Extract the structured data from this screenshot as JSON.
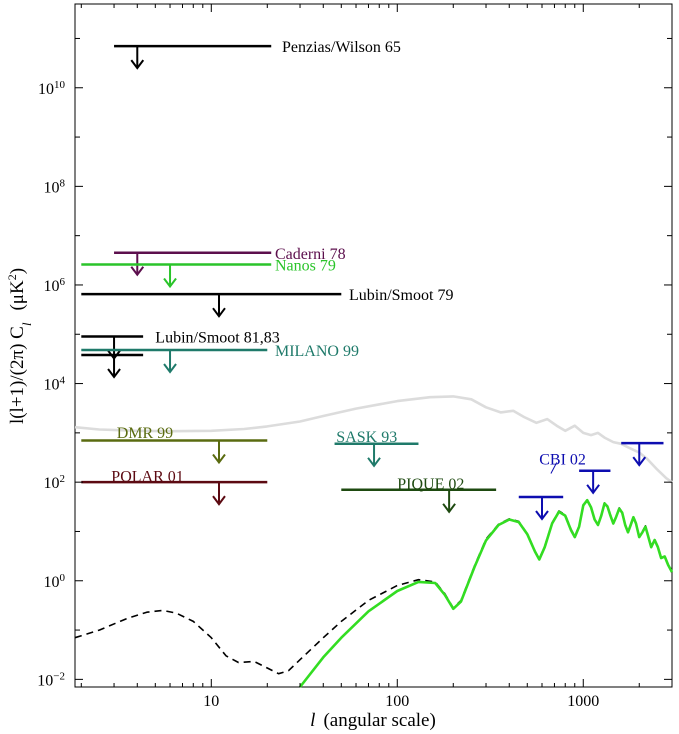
{
  "chart_data": {
    "type": "line",
    "title": "",
    "xlabel_italic": "l",
    "xlabel_rest": "(angular scale)",
    "ylabel": "l(l+1)/(2π) C",
    "ylabel_sub": "l",
    "ylabel_unit": "(μK",
    "ylabel_unit_sup": "2",
    "ylabel_unit_end": ")",
    "x_scale": "log",
    "y_scale": "log",
    "xlim": [
      1.85,
      3000
    ],
    "ylim": [
      0.007,
      500000000000
    ],
    "x_ticks": [
      {
        "value": 10,
        "label": "10"
      },
      {
        "value": 100,
        "label": "100"
      },
      {
        "value": 1000,
        "label": "1000"
      }
    ],
    "y_ticks": [
      {
        "value": 0.01,
        "base": "10",
        "exp": "−2"
      },
      {
        "value": 1,
        "base": "10",
        "exp": "0"
      },
      {
        "value": 100,
        "base": "10",
        "exp": "2"
      },
      {
        "value": 10000,
        "base": "10",
        "exp": "4"
      },
      {
        "value": 1000000,
        "base": "10",
        "exp": "6"
      },
      {
        "value": 100000000,
        "base": "10",
        "exp": "8"
      },
      {
        "value": 10000000000,
        "base": "10",
        "exp": "10"
      }
    ],
    "upper_limits": [
      {
        "name": "Penzias/Wilson 65",
        "color": "#000000",
        "x0": 3,
        "x1": 21,
        "y": 70000000000,
        "arrow_x": 4,
        "label_x": 24,
        "label_y": 70000000000
      },
      {
        "name": "Caderni 78",
        "color": "#5c0f4d",
        "x0": 3,
        "x1": 21,
        "y": 4500000,
        "arrow_x": 4,
        "label_x": 22,
        "label_y": 4500000
      },
      {
        "name": "Nanos 79",
        "color": "#2ac42a",
        "x0": 2,
        "x1": 21,
        "y": 2600000,
        "arrow_x": 6,
        "label_x": 22,
        "label_y": 2600000
      },
      {
        "name": "Lubin/Smoot 79",
        "color": "#000000",
        "x0": 2,
        "x1": 50,
        "y": 650000,
        "arrow_x": 11,
        "label_x": 55,
        "label_y": 650000
      },
      {
        "name": "Lubin/Smoot 81,83",
        "color": "#000000",
        "x0": 2,
        "x1": 4.3,
        "y": 90000,
        "arrow_x": 3,
        "label_x": 5,
        "label_y": 90000
      },
      {
        "name": "",
        "color": "#000000",
        "x0": 2,
        "x1": 4.3,
        "y": 38000,
        "arrow_x": 3
      },
      {
        "name": "MILANO 99",
        "color": "#1f7a6a",
        "x0": 2,
        "x1": 20,
        "y": 48000,
        "arrow_x": 6,
        "label_x": 22,
        "label_y": 48000
      },
      {
        "name": "DMR 99",
        "color": "#5a6b10",
        "x0": 2,
        "x1": 20,
        "y": 700,
        "arrow_x": 11,
        "label_x": 3.1,
        "label_y": 1050
      },
      {
        "name": "POLAR 01",
        "color": "#5c0a12",
        "x0": 2,
        "x1": 20,
        "y": 100,
        "arrow_x": 11,
        "label_x": 2.9,
        "label_y": 135
      },
      {
        "name": "SASK 93",
        "color": "#1f7a6a",
        "x0": 46,
        "x1": 130,
        "y": 600,
        "arrow_x": 75,
        "label_x": 47,
        "label_y": 860
      },
      {
        "name": "PIQUE 02",
        "color": "#1e4a10",
        "x0": 50,
        "x1": 340,
        "y": 70,
        "arrow_x": 190,
        "label_x": 100,
        "label_y": 96
      },
      {
        "name": "",
        "color": "#0d0db0",
        "x0": 450,
        "x1": 780,
        "y": 50,
        "arrow_x": 600
      },
      {
        "name": "",
        "color": "#0d0db0",
        "x0": 950,
        "x1": 1400,
        "y": 170,
        "arrow_x": 1130
      },
      {
        "name": "",
        "color": "#0d0db0",
        "x0": 1600,
        "x1": 2700,
        "y": 620,
        "arrow_x": 2000
      }
    ],
    "cbi_label": {
      "name": "CBI 02",
      "color": "#0d0db0",
      "label_x": 580,
      "label_y": 300,
      "leader_from_x": 720,
      "leader_from_y": 250,
      "leader_to_x": 670,
      "leader_to_y": 150
    },
    "series": [
      {
        "name": "gray_reference",
        "color": "#dcdcdc",
        "style": "solid",
        "points": [
          [
            1.85,
            1300
          ],
          [
            2.5,
            1170
          ],
          [
            4,
            1100
          ],
          [
            6,
            1080
          ],
          [
            10,
            1100
          ],
          [
            15,
            1200
          ],
          [
            20,
            1350
          ],
          [
            30,
            1700
          ],
          [
            40,
            2200
          ],
          [
            60,
            3100
          ],
          [
            100,
            4400
          ],
          [
            150,
            5300
          ],
          [
            200,
            5500
          ],
          [
            250,
            4800
          ],
          [
            300,
            3300
          ],
          [
            360,
            2600
          ],
          [
            420,
            2800
          ],
          [
            480,
            2100
          ],
          [
            560,
            1600
          ],
          [
            640,
            1900
          ],
          [
            720,
            1400
          ],
          [
            800,
            1100
          ],
          [
            900,
            1400
          ],
          [
            1000,
            1000
          ],
          [
            1100,
            900
          ],
          [
            1200,
            1000
          ],
          [
            1300,
            800
          ],
          [
            1450,
            650
          ],
          [
            1600,
            600
          ],
          [
            1800,
            480
          ],
          [
            2000,
            400
          ],
          [
            2200,
            300
          ],
          [
            2500,
            180
          ],
          [
            2800,
            120
          ],
          [
            3000,
            100
          ]
        ]
      },
      {
        "name": "model_dashed",
        "color": "#000000",
        "style": "dashed",
        "points": [
          [
            1.85,
            0.07
          ],
          [
            2.5,
            0.1
          ],
          [
            3.5,
            0.17
          ],
          [
            4.5,
            0.23
          ],
          [
            5.5,
            0.25
          ],
          [
            6.5,
            0.22
          ],
          [
            8,
            0.15
          ],
          [
            10,
            0.07
          ],
          [
            12,
            0.03
          ],
          [
            14,
            0.022
          ],
          [
            17,
            0.023
          ],
          [
            20,
            0.017
          ],
          [
            23,
            0.013
          ],
          [
            26,
            0.015
          ],
          [
            30,
            0.025
          ],
          [
            40,
            0.07
          ],
          [
            50,
            0.15
          ],
          [
            70,
            0.4
          ],
          [
            100,
            0.8
          ],
          [
            130,
            1.05
          ],
          [
            160,
            0.95
          ],
          [
            180,
            0.55
          ],
          [
            200,
            0.28
          ],
          [
            220,
            0.4
          ],
          [
            260,
            2
          ],
          [
            300,
            7
          ],
          [
            350,
            14
          ],
          [
            400,
            18
          ],
          [
            450,
            16
          ],
          [
            500,
            9
          ],
          [
            550,
            4
          ],
          [
            580,
            2.8
          ],
          [
            620,
            5
          ],
          [
            680,
            15
          ],
          [
            740,
            26
          ],
          [
            800,
            22
          ],
          [
            860,
            11
          ],
          [
            900,
            8
          ],
          [
            950,
            13
          ],
          [
            1000,
            35
          ],
          [
            1050,
            44
          ],
          [
            1100,
            32
          ],
          [
            1150,
            18
          ],
          [
            1200,
            14
          ],
          [
            1250,
            22
          ],
          [
            1300,
            38
          ],
          [
            1350,
            33
          ],
          [
            1400,
            22
          ],
          [
            1450,
            15
          ],
          [
            1500,
            20
          ],
          [
            1560,
            30
          ],
          [
            1620,
            25
          ],
          [
            1680,
            14
          ],
          [
            1740,
            10
          ],
          [
            1800,
            14
          ],
          [
            1860,
            20
          ],
          [
            1920,
            15
          ],
          [
            2000,
            8
          ],
          [
            2080,
            10
          ],
          [
            2160,
            13
          ],
          [
            2240,
            8
          ],
          [
            2320,
            5
          ],
          [
            2420,
            7
          ],
          [
            2520,
            5
          ],
          [
            2620,
            3
          ],
          [
            2740,
            3.2
          ],
          [
            2860,
            2.2
          ],
          [
            3000,
            1.6
          ]
        ]
      },
      {
        "name": "model_green",
        "color": "#33dd22",
        "style": "solid",
        "points": [
          [
            30,
            0.007
          ],
          [
            40,
            0.028
          ],
          [
            50,
            0.07
          ],
          [
            70,
            0.24
          ],
          [
            100,
            0.62
          ],
          [
            130,
            0.95
          ],
          [
            160,
            0.9
          ],
          [
            180,
            0.52
          ],
          [
            200,
            0.27
          ],
          [
            220,
            0.38
          ],
          [
            260,
            1.9
          ],
          [
            300,
            6.6
          ],
          [
            350,
            13.5
          ],
          [
            400,
            17.5
          ],
          [
            450,
            15.5
          ],
          [
            500,
            8.8
          ],
          [
            550,
            3.9
          ],
          [
            580,
            2.7
          ],
          [
            620,
            4.8
          ],
          [
            680,
            14.5
          ],
          [
            740,
            25
          ],
          [
            800,
            21
          ],
          [
            860,
            10.5
          ],
          [
            900,
            7.7
          ],
          [
            950,
            12.5
          ],
          [
            1000,
            34
          ],
          [
            1050,
            43
          ],
          [
            1100,
            31
          ],
          [
            1150,
            17.5
          ],
          [
            1200,
            13.5
          ],
          [
            1250,
            21
          ],
          [
            1300,
            37
          ],
          [
            1350,
            32
          ],
          [
            1400,
            21
          ],
          [
            1450,
            14.5
          ],
          [
            1500,
            19.5
          ],
          [
            1560,
            29
          ],
          [
            1620,
            24
          ],
          [
            1680,
            13.5
          ],
          [
            1740,
            9.6
          ],
          [
            1800,
            13.5
          ],
          [
            1860,
            19.5
          ],
          [
            1920,
            14.5
          ],
          [
            2000,
            7.7
          ],
          [
            2080,
            9.6
          ],
          [
            2160,
            12.5
          ],
          [
            2240,
            7.7
          ],
          [
            2320,
            4.8
          ],
          [
            2420,
            6.7
          ],
          [
            2520,
            4.8
          ],
          [
            2620,
            2.9
          ],
          [
            2740,
            3.1
          ],
          [
            2860,
            2.1
          ],
          [
            3000,
            1.5
          ]
        ]
      }
    ]
  }
}
